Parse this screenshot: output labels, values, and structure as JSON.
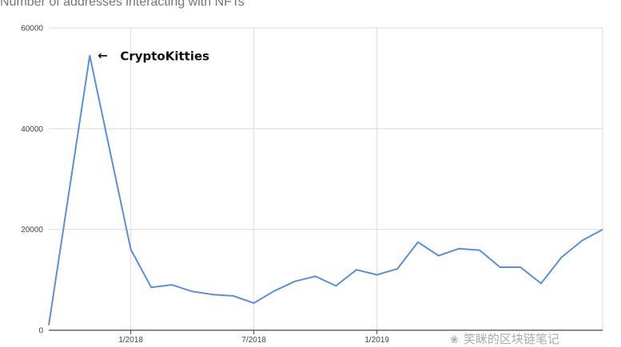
{
  "chart_data": {
    "type": "line",
    "title": "Number of addresses interacting with NFTs",
    "xlabel": "",
    "ylabel": "",
    "x_tick_labels": [
      "1/2018",
      "7/2018",
      "1/2019"
    ],
    "y_ticks": [
      0,
      20000,
      40000,
      60000
    ],
    "y_tick_labels": [
      "0",
      "20000",
      "40000",
      "60000"
    ],
    "ylim": [
      0,
      60000
    ],
    "grid": true,
    "legend": "none",
    "series": [
      {
        "color": "#5b8fd9",
        "points": [
          {
            "x": "9/2017",
            "y": 1000
          },
          {
            "x": "11/2017",
            "y": 54500
          },
          {
            "x": "1/2018",
            "y": 16000
          },
          {
            "x": "2/2018",
            "y": 8500
          },
          {
            "x": "3/2018",
            "y": 9000
          },
          {
            "x": "4/2018",
            "y": 7700
          },
          {
            "x": "5/2018",
            "y": 7100
          },
          {
            "x": "6/2018",
            "y": 6800
          },
          {
            "x": "7/2018",
            "y": 5400
          },
          {
            "x": "8/2018",
            "y": 7800
          },
          {
            "x": "9/2018",
            "y": 9700
          },
          {
            "x": "10/2018",
            "y": 10700
          },
          {
            "x": "11/2018",
            "y": 8800
          },
          {
            "x": "12/2018",
            "y": 12000
          },
          {
            "x": "1/2019",
            "y": 11000
          },
          {
            "x": "2/2019",
            "y": 12200
          },
          {
            "x": "3/2019",
            "y": 17500
          },
          {
            "x": "4/2019",
            "y": 14800
          },
          {
            "x": "5/2019",
            "y": 16200
          },
          {
            "x": "6/2019",
            "y": 15900
          },
          {
            "x": "7/2019",
            "y": 12500
          },
          {
            "x": "8/2019",
            "y": 12500
          },
          {
            "x": "9/2019",
            "y": 9300
          },
          {
            "x": "10/2019",
            "y": 14500
          },
          {
            "x": "11/2019",
            "y": 17800
          },
          {
            "x": "12/2019",
            "y": 20000
          }
        ]
      }
    ],
    "annotations": [
      {
        "text": "CryptoKitties",
        "arrow": "←",
        "target": "11/2017"
      }
    ]
  },
  "watermark": {
    "icon": "wechat-icon",
    "text": "笑眯的区块链笔记"
  }
}
